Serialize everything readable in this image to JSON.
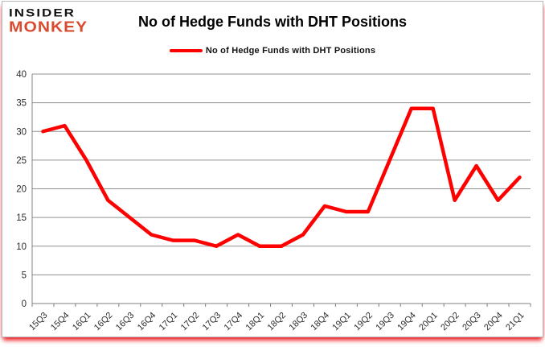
{
  "branding": {
    "logo_line1": "INSIDER",
    "logo_line2": "MONKEY",
    "logo_color1": "#161412",
    "logo_color2": "#d94b2e"
  },
  "header": {
    "title": "No of Hedge Funds with DHT Positions"
  },
  "legend": {
    "label": "No of Hedge Funds with DHT Positions",
    "marker_color": "#ff0000"
  },
  "chart_data": {
    "type": "line",
    "title": "No of Hedge Funds with DHT Positions",
    "categories": [
      "15Q3",
      "15Q4",
      "16Q1",
      "16Q2",
      "16Q3",
      "16Q4",
      "17Q1",
      "17Q2",
      "17Q3",
      "17Q4",
      "18Q1",
      "18Q2",
      "18Q3",
      "18Q4",
      "19Q1",
      "19Q2",
      "19Q3",
      "19Q4",
      "20Q1",
      "20Q2",
      "20Q3",
      "20Q4",
      "21Q1"
    ],
    "series": [
      {
        "name": "No of Hedge Funds with DHT Positions",
        "color": "#ff0000",
        "values": [
          30,
          31,
          25,
          18,
          15,
          12,
          11,
          11,
          10,
          12,
          10,
          10,
          12,
          17,
          16,
          16,
          25,
          34,
          34,
          18,
          24,
          18,
          22
        ]
      }
    ],
    "xlabel": "",
    "ylabel": "",
    "ylim": [
      0,
      40
    ],
    "ytick_interval": 5,
    "grid": "horizontal",
    "legend_position": "top-center",
    "gridline_color": "#919191",
    "axis_color": "#808080",
    "tick_label_color": "#2b2b2b"
  }
}
